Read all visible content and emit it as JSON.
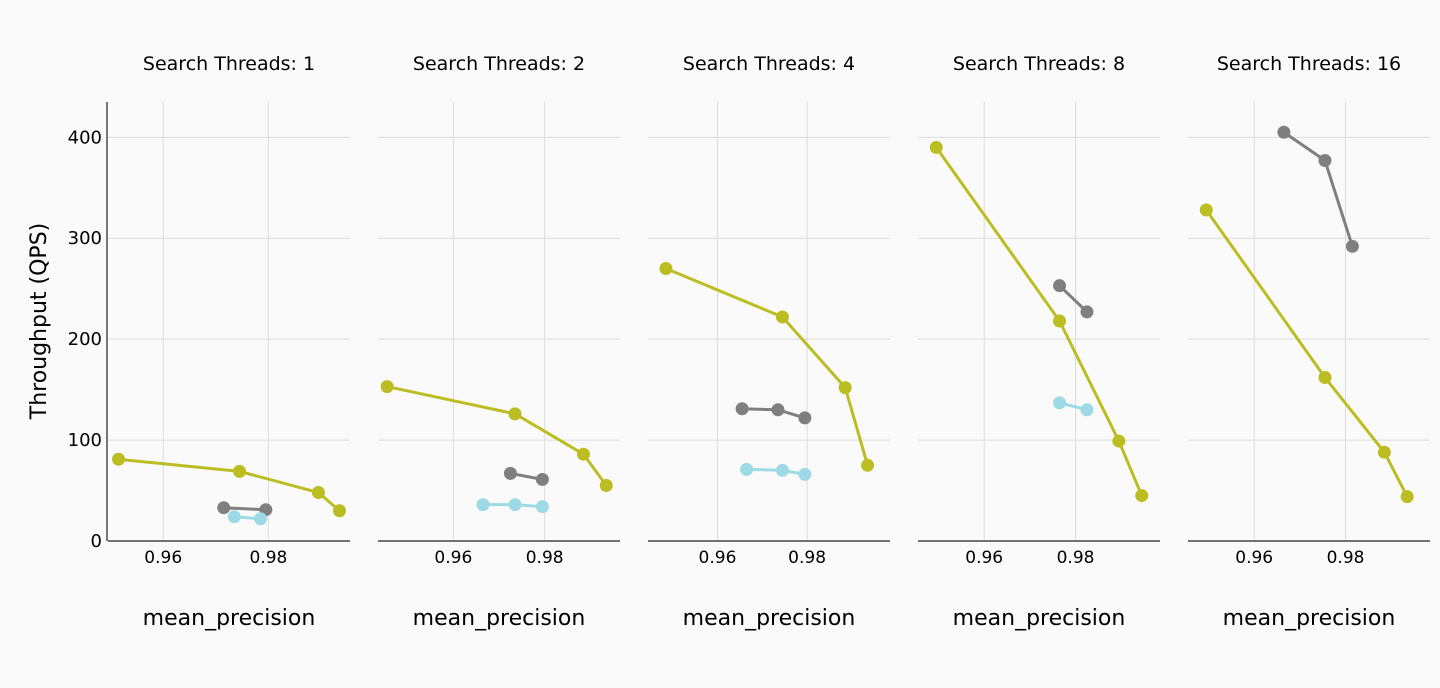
{
  "chart_data": {
    "type": "line",
    "ylabel": "Throughput (QPS)",
    "ylim": [
      0,
      435
    ],
    "yticks": [
      0,
      100,
      200,
      300,
      400
    ],
    "xticks": [
      0.96,
      0.98
    ],
    "grid": true,
    "colors": {
      "olive": "#bcbd22",
      "gray": "#7f7f7f",
      "cyan": "#9edae5"
    },
    "panels": [
      {
        "title": "Search Threads: 1",
        "xlabel": "mean_precision",
        "xlim": [
          0.9495,
          0.9955
        ],
        "series": [
          {
            "color": "olive",
            "x": [
              0.9515,
              0.9745,
              0.9895,
              0.9935
            ],
            "y": [
              81,
              69,
              48,
              30
            ]
          },
          {
            "color": "gray",
            "x": [
              0.9715,
              0.9795
            ],
            "y": [
              33,
              31
            ]
          },
          {
            "color": "cyan",
            "x": [
              0.9735,
              0.9785
            ],
            "y": [
              24,
              22
            ]
          }
        ]
      },
      {
        "title": "Search Threads: 2",
        "xlabel": "mean_precision",
        "xlim": [
          0.9435,
          0.9965
        ],
        "series": [
          {
            "color": "olive",
            "x": [
              0.9455,
              0.9735,
              0.9885,
              0.9935
            ],
            "y": [
              153,
              126,
              86,
              55
            ]
          },
          {
            "color": "gray",
            "x": [
              0.9725,
              0.9795
            ],
            "y": [
              67,
              61
            ]
          },
          {
            "color": "cyan",
            "x": [
              0.9665,
              0.9735,
              0.9795
            ],
            "y": [
              36,
              36,
              34
            ]
          }
        ]
      },
      {
        "title": "Search Threads: 4",
        "xlabel": "mean_precision",
        "xlim": [
          0.9445,
          0.9985
        ],
        "series": [
          {
            "color": "olive",
            "x": [
              0.9485,
              0.9745,
              0.9885,
              0.9935
            ],
            "y": [
              270,
              222,
              152,
              75
            ]
          },
          {
            "color": "gray",
            "x": [
              0.9655,
              0.9735,
              0.9795
            ],
            "y": [
              131,
              130,
              122
            ]
          },
          {
            "color": "cyan",
            "x": [
              0.9665,
              0.9745,
              0.9795
            ],
            "y": [
              71,
              70,
              66
            ]
          }
        ]
      },
      {
        "title": "Search Threads: 8",
        "xlabel": "mean_precision",
        "xlim": [
          0.9455,
          0.9985
        ],
        "series": [
          {
            "color": "olive",
            "x": [
              0.9495,
              0.9765,
              0.9895,
              0.9945
            ],
            "y": [
              390,
              218,
              99,
              45
            ]
          },
          {
            "color": "gray",
            "x": [
              0.9765,
              0.9825
            ],
            "y": [
              253,
              227
            ]
          },
          {
            "color": "cyan",
            "x": [
              0.9765,
              0.9825
            ],
            "y": [
              137,
              130
            ]
          }
        ]
      },
      {
        "title": "Search Threads: 16",
        "xlabel": "mean_precision",
        "xlim": [
          0.9455,
          0.9985
        ],
        "series": [
          {
            "color": "olive",
            "x": [
              0.9495,
              0.9755,
              0.9885,
              0.9935
            ],
            "y": [
              328,
              162,
              88,
              44
            ]
          },
          {
            "color": "gray",
            "x": [
              0.9665,
              0.9755,
              0.9815
            ],
            "y": [
              405,
              377,
              292
            ]
          }
        ]
      }
    ]
  }
}
